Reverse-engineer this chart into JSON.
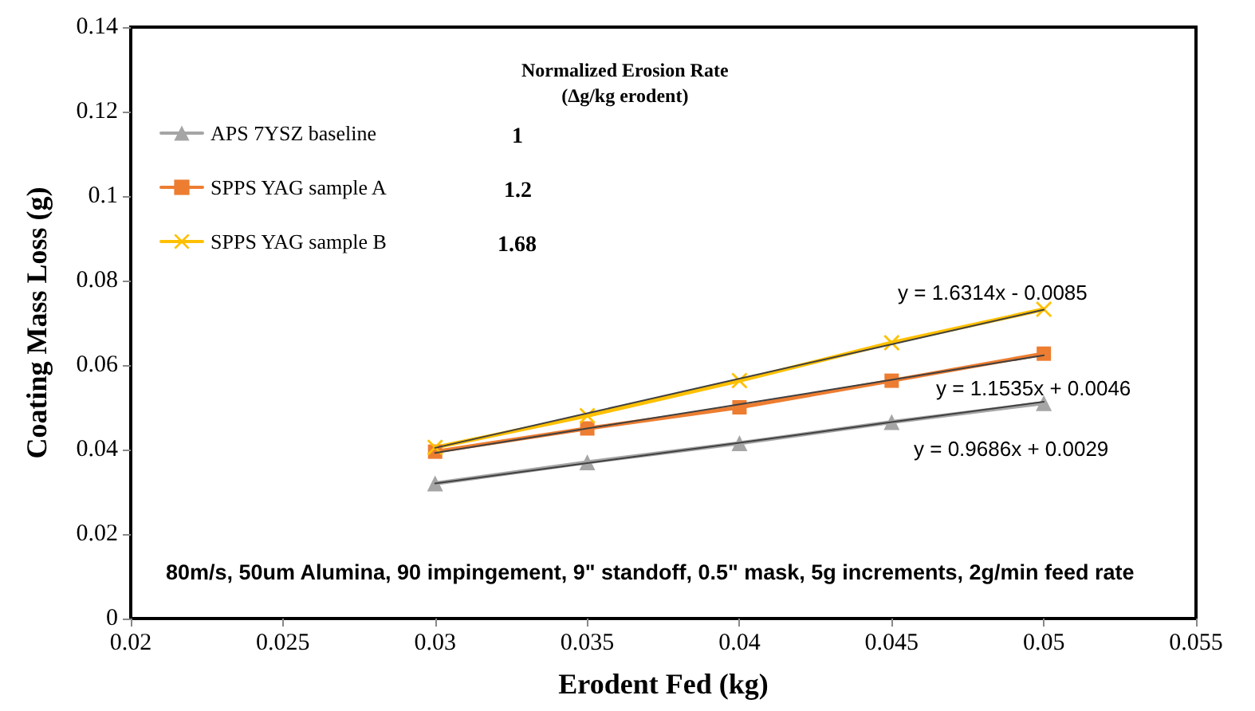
{
  "chart_data": {
    "type": "line",
    "xlabel": "Erodent Fed (kg)",
    "ylabel": "Coating Mass Loss (g)",
    "legend_title": "Normalized Erosion Rate\n(Δg/kg erodent)",
    "x": [
      0.03,
      0.035,
      0.04,
      0.045,
      0.05
    ],
    "series": [
      {
        "name": "APS 7YSZ baseline",
        "color": "#a5a5a5",
        "marker": "triangle",
        "values": [
          0.032,
          0.037,
          0.0415,
          0.0465,
          0.051
        ]
      },
      {
        "name": "SPPS YAG sample A",
        "color": "#ed7d31",
        "marker": "square",
        "values": [
          0.0395,
          0.045,
          0.05,
          0.0563,
          0.0627
        ]
      },
      {
        "name": "SPPS YAG sample B",
        "color": "#ffc000",
        "marker": "cross",
        "values": [
          0.0405,
          0.048,
          0.0563,
          0.0653,
          0.0732
        ]
      },
      {
        "type": "line",
        "color": "#404040",
        "marker": "none",
        "values": [
          0.032,
          0.0368,
          0.0416,
          0.0465,
          0.0513
        ]
      },
      {
        "type": "line",
        "color": "#404040",
        "marker": "none",
        "values": [
          0.0392,
          0.045,
          0.0507,
          0.0565,
          0.0623
        ]
      },
      {
        "type": "line",
        "color": "#404040",
        "marker": "none",
        "values": [
          0.0404,
          0.0486,
          0.0568,
          0.0649,
          0.0731
        ]
      }
    ],
    "xlim": [
      0.02,
      0.055
    ],
    "xticks": [
      0.02,
      0.025,
      0.03,
      0.035,
      0.04,
      0.045,
      0.05,
      0.055
    ],
    "ylim": [
      0,
      0.14
    ],
    "yticks": [
      0,
      0.02,
      0.04,
      0.06,
      0.08,
      0.1,
      0.12,
      0.14
    ],
    "grid": false,
    "legend": "top left",
    "annotations": [
      "1",
      "1.2",
      "1.68",
      "y = 0.9686x + 0.0029",
      "y = 1.1535x + 0.0046",
      "y = 1.6314x - 0.0085",
      "80m/s, 50um Alumina, 90 impingement, 9\" standoff, 0.5\" mask, 5g increments, 2g/min feed rate"
    ]
  }
}
